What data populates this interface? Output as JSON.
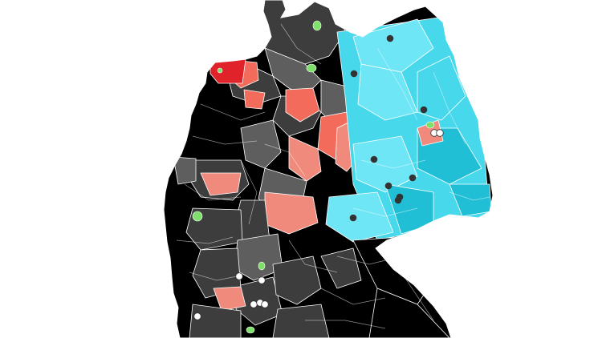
{
  "map": {
    "colors": {
      "background": "#ffffff",
      "black": "#000000",
      "dark_gray": "#3d3d3d",
      "mid_gray": "#5e5e5e",
      "light_gray": "#7a7a7a",
      "salmon": "#f08a7c",
      "coral": "#f26b5b",
      "red": "#e0222a",
      "cyan_light": "#6ee6f6",
      "cyan": "#48d8ec",
      "cyan_dark": "#20bfd6",
      "green": "#7ee06a",
      "city_marker_dark": "#333333",
      "city_marker_light": "#ffffff"
    },
    "legend": []
  }
}
